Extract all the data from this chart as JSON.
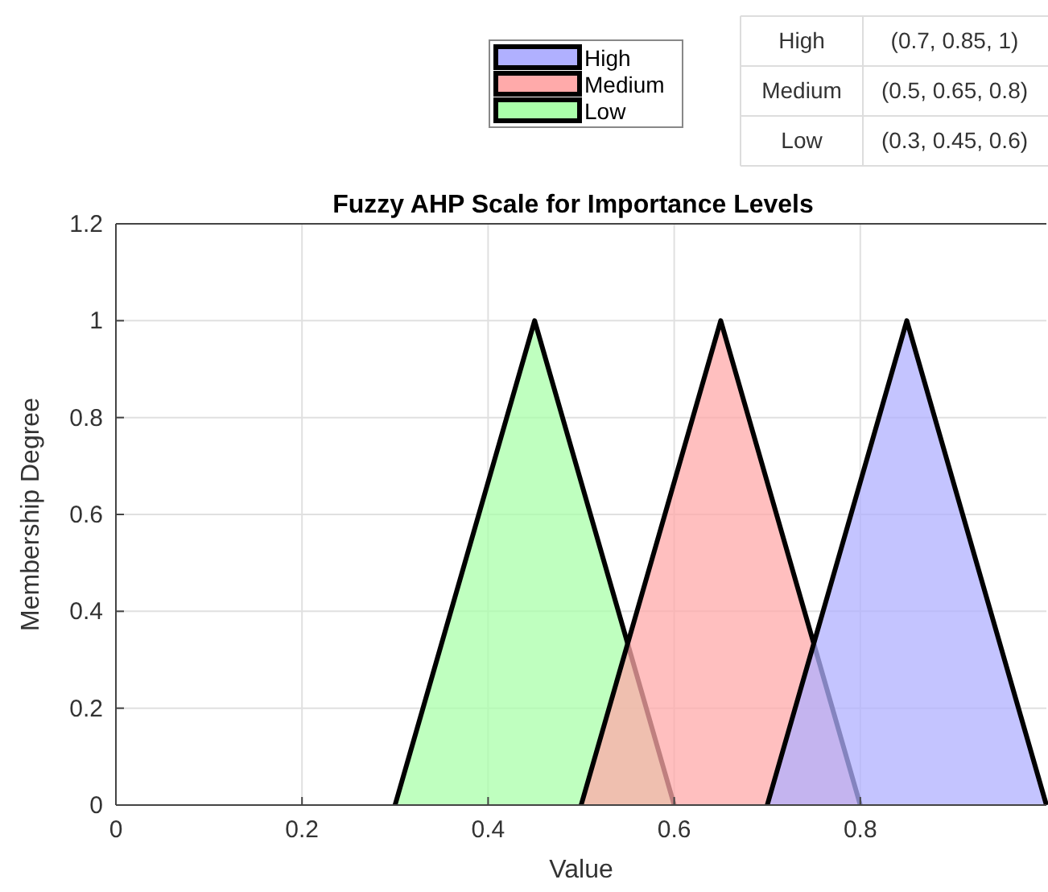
{
  "chart_data": {
    "type": "area",
    "title": "Fuzzy AHP Scale for Importance Levels",
    "xlabel": "Value",
    "ylabel": "Membership Degree",
    "xlim": [
      0,
      1
    ],
    "ylim": [
      0,
      1.2
    ],
    "xticks": [
      0,
      0.2,
      0.4,
      0.6,
      0.8
    ],
    "yticks": [
      0,
      0.2,
      0.4,
      0.6,
      0.8,
      1,
      1.2
    ],
    "grid": true,
    "legend": "top",
    "line_style": "solid",
    "series": [
      {
        "name": "High",
        "color": "#b0b0ff",
        "x": [
          0.7,
          0.85,
          1
        ],
        "values": [
          0,
          1,
          0
        ]
      },
      {
        "name": "Medium",
        "color": "#ffaaaa",
        "x": [
          0.5,
          0.65,
          0.8
        ],
        "values": [
          0,
          1,
          0
        ]
      },
      {
        "name": "Low",
        "color": "#aaffaa",
        "x": [
          0.3,
          0.45,
          0.6
        ],
        "values": [
          0,
          1,
          0
        ]
      }
    ],
    "annotations": [
      "High",
      "(0.7, 0.85, 1)",
      "Medium",
      "(0.5, 0.65, 0.8)",
      "Low",
      "(0.3, 0.45, 0.6)"
    ]
  }
}
